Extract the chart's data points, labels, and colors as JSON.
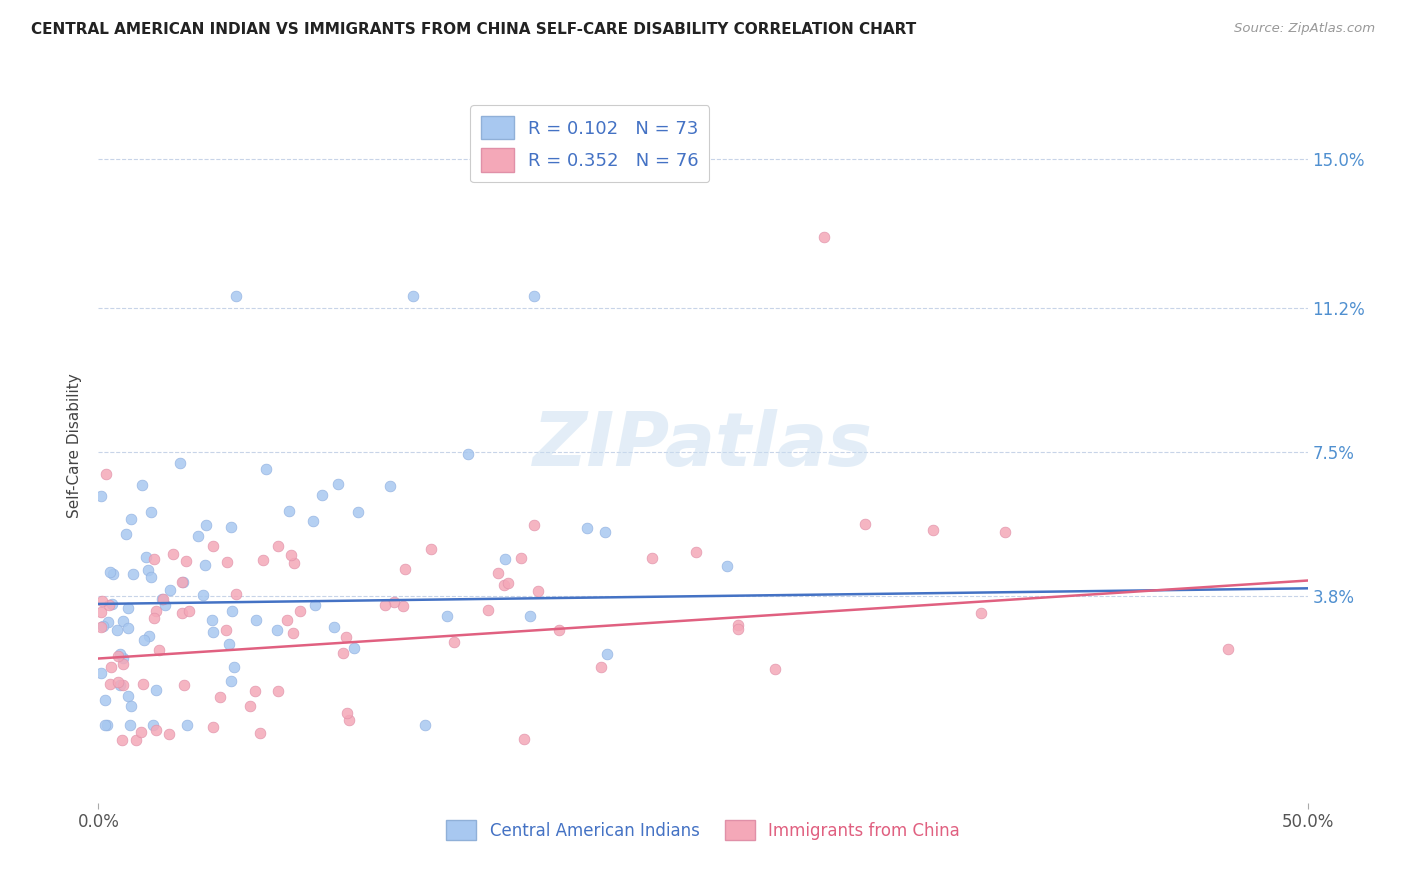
{
  "title": "CENTRAL AMERICAN INDIAN VS IMMIGRANTS FROM CHINA SELF-CARE DISABILITY CORRELATION CHART",
  "source": "Source: ZipAtlas.com",
  "ylabel": "Self-Care Disability",
  "ytick_labels": [
    "15.0%",
    "11.2%",
    "7.5%",
    "3.8%"
  ],
  "ytick_values": [
    0.15,
    0.112,
    0.075,
    0.038
  ],
  "xlim": [
    0.0,
    0.5
  ],
  "ylim": [
    -0.015,
    0.168
  ],
  "series1_color": "#a8c8f0",
  "series2_color": "#f4a8b8",
  "series1_R": 0.102,
  "series1_N": 73,
  "series2_R": 0.352,
  "series2_N": 76,
  "trendline1_color": "#4472c4",
  "trendline2_color": "#e06080",
  "watermark": "ZIPatlas",
  "background_color": "#ffffff",
  "grid_color": "#c8d4e8"
}
